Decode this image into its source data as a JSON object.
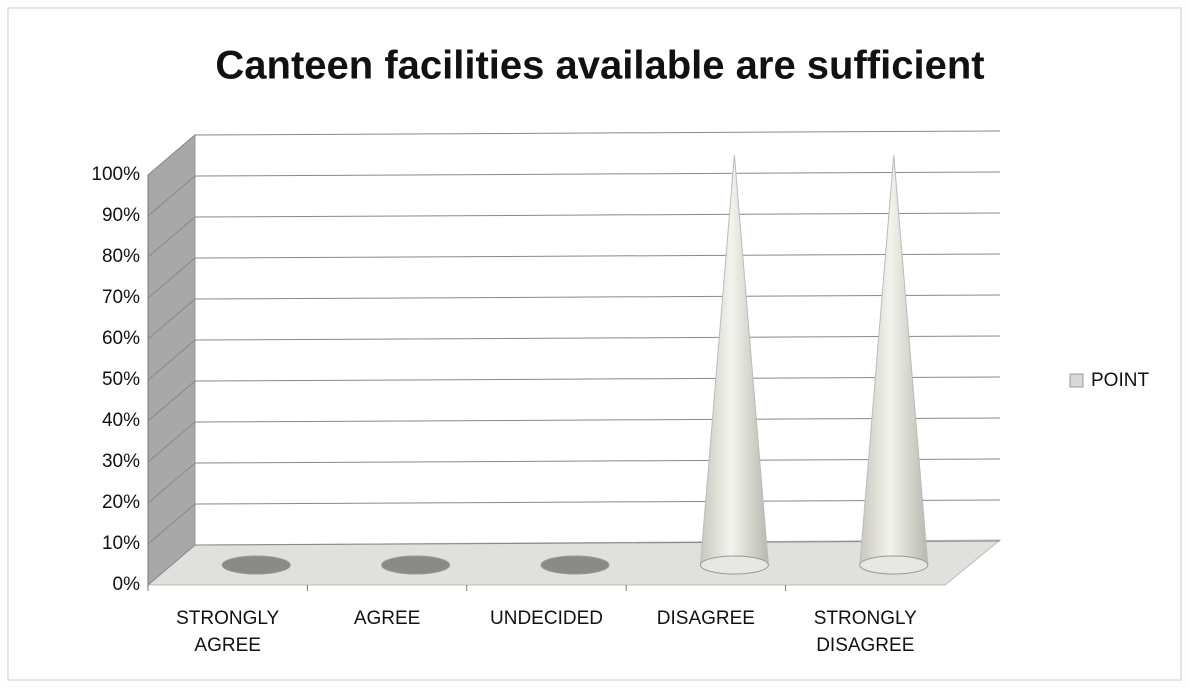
{
  "chart_data": {
    "type": "cone",
    "title": "Canteen facilities available are sufficient",
    "categories": [
      "STRONGLY AGREE",
      "AGREE",
      "UNDECIDED",
      "DISAGREE",
      "STRONGLY DISAGREE"
    ],
    "series": [
      {
        "name": "POINT",
        "color": "#d9d9d9",
        "values": [
          0,
          0,
          0,
          100,
          100
        ]
      }
    ],
    "ylim": [
      0,
      100
    ],
    "yticks": [
      {
        "value": 0,
        "label": "0%"
      },
      {
        "value": 10,
        "label": "10%"
      },
      {
        "value": 20,
        "label": "20%"
      },
      {
        "value": 30,
        "label": "30%"
      },
      {
        "value": 40,
        "label": "40%"
      },
      {
        "value": 50,
        "label": "50%"
      },
      {
        "value": 60,
        "label": "60%"
      },
      {
        "value": 70,
        "label": "70%"
      },
      {
        "value": 80,
        "label": "80%"
      },
      {
        "value": 90,
        "label": "90%"
      },
      {
        "value": 100,
        "label": "100%"
      }
    ],
    "grid": true,
    "legend": "right"
  }
}
